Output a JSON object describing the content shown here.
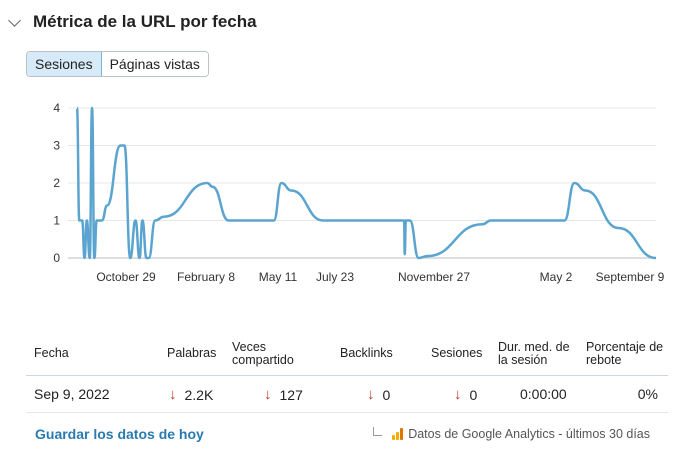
{
  "section": {
    "title": "Métrica de la URL por fecha"
  },
  "toggle": {
    "options": [
      {
        "label": "Sesiones",
        "active": true
      },
      {
        "label": "Páginas vistas",
        "active": false
      }
    ]
  },
  "chart_data": {
    "type": "line",
    "title": "",
    "xlabel": "",
    "ylabel": "",
    "ylim": [
      0,
      4
    ],
    "yticks": [
      0,
      1,
      2,
      3,
      4
    ],
    "grid": true,
    "color": "#5ba4cf",
    "xtick_labels": [
      "October 29",
      "February 8",
      "May 11",
      "July 23",
      "November 27",
      "May 2",
      "September 9"
    ],
    "series": [
      {
        "values": [
          [
            0.0,
            4
          ],
          [
            0.004,
            1
          ],
          [
            0.009,
            1
          ],
          [
            0.013,
            0
          ],
          [
            0.017,
            1
          ],
          [
            0.022,
            0
          ],
          [
            0.026,
            4
          ],
          [
            0.03,
            0
          ],
          [
            0.034,
            1
          ],
          [
            0.043,
            1
          ],
          [
            0.052,
            1.4
          ],
          [
            0.075,
            3
          ],
          [
            0.082,
            3
          ],
          [
            0.092,
            0
          ],
          [
            0.101,
            1
          ],
          [
            0.108,
            0
          ],
          [
            0.113,
            1
          ],
          [
            0.12,
            0
          ],
          [
            0.124,
            0
          ],
          [
            0.135,
            1
          ],
          [
            0.15,
            1.1
          ],
          [
            0.225,
            2
          ],
          [
            0.234,
            1.9
          ],
          [
            0.262,
            1
          ],
          [
            0.34,
            1
          ],
          [
            0.353,
            2
          ],
          [
            0.37,
            1.8
          ],
          [
            0.425,
            1
          ],
          [
            0.565,
            1
          ],
          [
            0.566,
            0.1
          ],
          [
            0.568,
            1
          ],
          [
            0.575,
            1
          ],
          [
            0.59,
            0
          ],
          [
            0.605,
            0.05
          ],
          [
            0.7,
            0.9
          ],
          [
            0.715,
            1
          ],
          [
            0.842,
            1
          ],
          [
            0.859,
            2
          ],
          [
            0.878,
            1.8
          ],
          [
            0.935,
            0.8
          ],
          [
            1.0,
            0
          ]
        ]
      }
    ]
  },
  "table": {
    "headers": [
      "Fecha",
      "Palabras",
      "Veces compartido",
      "Backlinks",
      "Sesiones",
      "Dur. med. de la sesión",
      "Porcentaje de rebote"
    ],
    "row": {
      "fecha": "Sep 9, 2022",
      "palabras": "2.2K",
      "compartido": "127",
      "backlinks": "0",
      "sesiones": "0",
      "duracion": "0:00:00",
      "rebote": "0%"
    },
    "trend_icon": "down-arrow-icon",
    "trend_color": "#c0392b"
  },
  "footer": {
    "save_label": "Guardar los datos de hoy",
    "ga_note": "Datos de Google Analytics - últimos 30 días",
    "ga_icon": "google-analytics-icon"
  }
}
